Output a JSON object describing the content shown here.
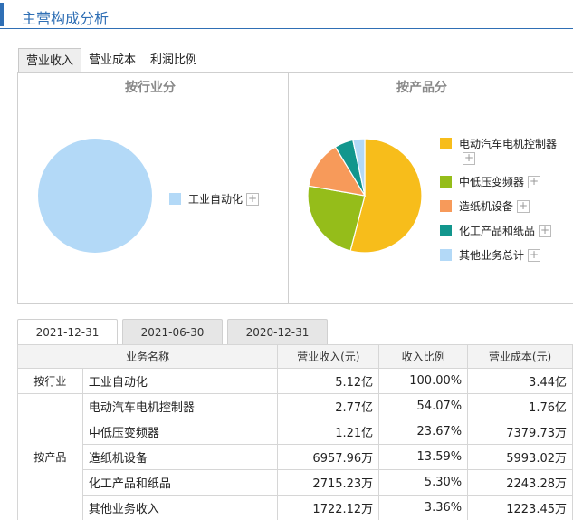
{
  "header": {
    "title": "主营构成分析",
    "accent_color": "#2f6fb5"
  },
  "tabs": [
    {
      "label": "营业收入",
      "active": true
    },
    {
      "label": "营业成本",
      "active": false
    },
    {
      "label": "利润比例",
      "active": false
    }
  ],
  "panels": {
    "industry": {
      "title": "按行业分",
      "legend": [
        {
          "label": "工业自动化",
          "color": "#b3d9f7"
        }
      ]
    },
    "product": {
      "title": "按产品分",
      "legend": [
        {
          "label": "电动汽车电机控制器",
          "color": "#f7bd1b"
        },
        {
          "label": "中低压变频器",
          "color": "#95bd1a"
        },
        {
          "label": "造纸机设备",
          "color": "#f79a5a"
        },
        {
          "label": "化工产品和纸品",
          "color": "#12968d"
        },
        {
          "label": "其他业务总计",
          "color": "#b3d9f7"
        }
      ]
    }
  },
  "chart_data": [
    {
      "type": "pie",
      "title": "按行业分",
      "categories": [
        "工业自动化"
      ],
      "values": [
        100.0
      ],
      "colors": [
        "#b3d9f7"
      ]
    },
    {
      "type": "pie",
      "title": "按产品分",
      "categories": [
        "电动汽车电机控制器",
        "中低压变频器",
        "造纸机设备",
        "化工产品和纸品",
        "其他业务总计"
      ],
      "values": [
        54.07,
        23.67,
        13.59,
        5.3,
        3.36
      ],
      "colors": [
        "#f7bd1b",
        "#95bd1a",
        "#f79a5a",
        "#12968d",
        "#b3d9f7"
      ]
    }
  ],
  "plus_symbol": "+",
  "date_tabs": [
    {
      "label": "2021-12-31",
      "active": true
    },
    {
      "label": "2021-06-30",
      "active": false
    },
    {
      "label": "2020-12-31",
      "active": false
    }
  ],
  "table": {
    "headers": [
      "业务名称",
      "营业收入(元)",
      "收入比例",
      "营业成本(元)"
    ],
    "groups": [
      {
        "label": "按行业",
        "rows": [
          {
            "name": "工业自动化",
            "revenue": "5.12亿",
            "ratio": "100.00%",
            "cost": "3.44亿"
          }
        ]
      },
      {
        "label": "按产品",
        "rows": [
          {
            "name": "电动汽车电机控制器",
            "revenue": "2.77亿",
            "ratio": "54.07%",
            "cost": "1.76亿"
          },
          {
            "name": "中低压变频器",
            "revenue": "1.21亿",
            "ratio": "23.67%",
            "cost": "7379.73万"
          },
          {
            "name": "造纸机设备",
            "revenue": "6957.96万",
            "ratio": "13.59%",
            "cost": "5993.02万"
          },
          {
            "name": "化工产品和纸品",
            "revenue": "2715.23万",
            "ratio": "5.30%",
            "cost": "2243.28万"
          },
          {
            "name": "其他业务收入",
            "revenue": "1722.12万",
            "ratio": "3.36%",
            "cost": "1223.45万"
          }
        ]
      }
    ]
  }
}
